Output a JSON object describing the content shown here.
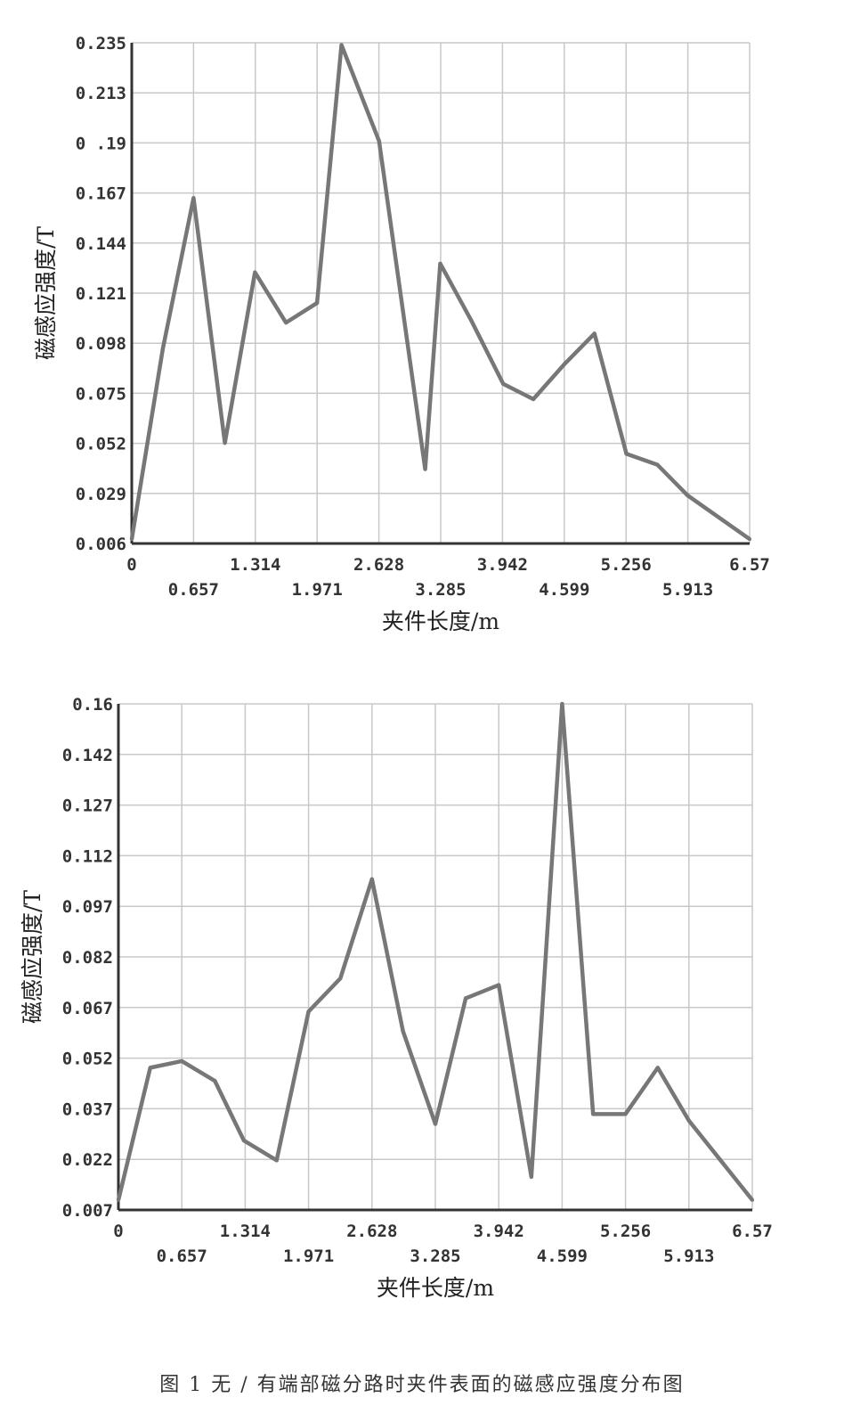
{
  "caption": "图 1 无 / 有端部磁分路时夹件表面的磁感应强度分布图",
  "chart_data": [
    {
      "type": "line",
      "xlabel": "夹件长度/m",
      "ylabel": "磁感应强度/T",
      "xlim": [
        0,
        6.57
      ],
      "ylim": [
        0.006,
        0.235
      ],
      "grid": true,
      "x_ticks": [
        "0",
        "0.657",
        "1.314",
        "1.971",
        "2.628",
        "3.285",
        "3.942",
        "4.599",
        "5.256",
        "5.913",
        "6.57"
      ],
      "y_ticks": [
        "0.235",
        "0.213",
        "0 .19",
        "0.167",
        "0.144",
        "0.121",
        "0.098",
        "0.075",
        "0.052",
        "0.029",
        "0.006"
      ],
      "series": [
        {
          "x": [
            0,
            0.33,
            0.657,
            0.99,
            1.31,
            1.64,
            1.97,
            2.23,
            2.63,
            3.12,
            3.28,
            3.61,
            3.95,
            4.27,
            4.6,
            4.92,
            5.26,
            5.59,
            5.91,
            6.57
          ],
          "y": [
            0.008,
            0.095,
            0.164,
            0.052,
            0.13,
            0.107,
            0.116,
            0.234,
            0.19,
            0.04,
            0.134,
            0.108,
            0.079,
            0.072,
            0.088,
            0.102,
            0.047,
            0.042,
            0.028,
            0.008
          ]
        }
      ]
    },
    {
      "type": "line",
      "xlabel": "夹件长度/m",
      "ylabel": "磁感应强度/T",
      "xlim": [
        0,
        6.57
      ],
      "ylim": [
        0.007,
        0.16
      ],
      "grid": true,
      "x_ticks": [
        "0",
        "0.657",
        "1.314",
        "1.971",
        "2.628",
        "3.285",
        "3.942",
        "4.599",
        "5.256",
        "5.913",
        "6.57"
      ],
      "y_ticks": [
        "0.16",
        "0.142",
        "0.127",
        "0.112",
        "0.097",
        "0.082",
        "0.067",
        "0.052",
        "0.037",
        "0.022",
        "0.007"
      ],
      "series": [
        {
          "x": [
            0,
            0.33,
            0.657,
            1.0,
            1.3,
            1.64,
            1.971,
            2.3,
            2.628,
            2.95,
            3.285,
            3.6,
            3.942,
            4.28,
            4.599,
            4.92,
            5.256,
            5.59,
            5.913,
            6.57
          ],
          "y": [
            0.01,
            0.05,
            0.052,
            0.046,
            0.028,
            0.022,
            0.067,
            0.077,
            0.107,
            0.061,
            0.033,
            0.071,
            0.075,
            0.017,
            0.16,
            0.036,
            0.036,
            0.05,
            0.034,
            0.01
          ]
        }
      ]
    }
  ]
}
